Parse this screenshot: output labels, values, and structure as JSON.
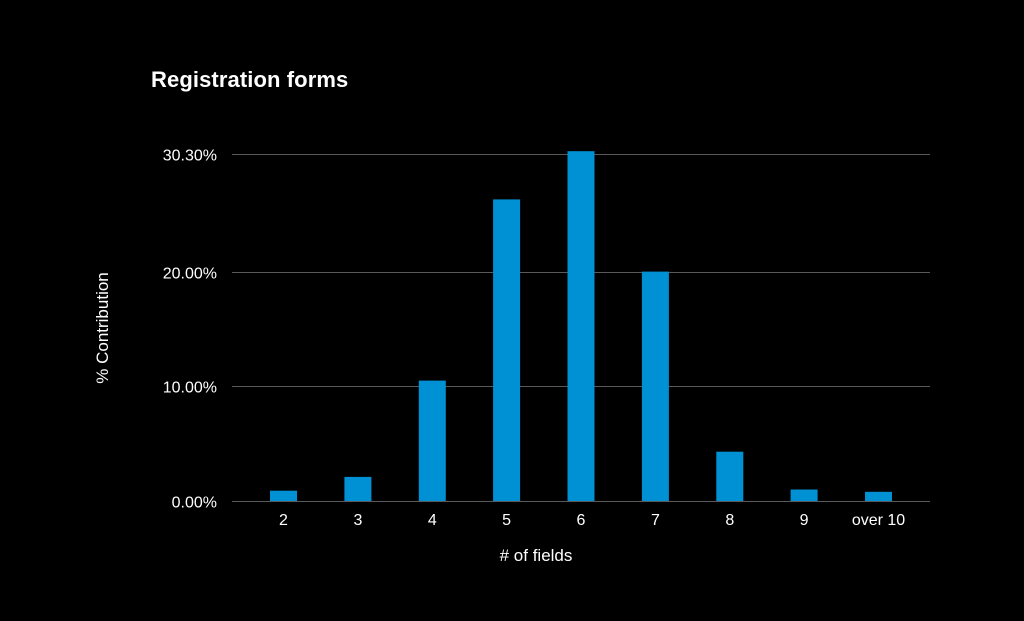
{
  "chart_data": {
    "type": "bar",
    "title": "Registration forms",
    "xlabel": "# of fields",
    "ylabel": "% Contribution",
    "categories": [
      "2",
      "3",
      "4",
      "5",
      "6",
      "7",
      "8",
      "9",
      "over 10"
    ],
    "values": [
      0.9,
      2.1,
      10.5,
      26.3,
      30.5,
      20.0,
      4.3,
      1.0,
      0.8
    ],
    "yticks": [
      {
        "value": 0,
        "label": "0.00%"
      },
      {
        "value": 10,
        "label": "10.00%"
      },
      {
        "value": 20,
        "label": "20.00%"
      },
      {
        "value": 30.3,
        "label": "30.30%"
      }
    ],
    "ylim": [
      0,
      30.3
    ],
    "grid": true,
    "bar_color": "#0090d4",
    "grid_color": "#5a5a5a",
    "background": "#000000"
  }
}
